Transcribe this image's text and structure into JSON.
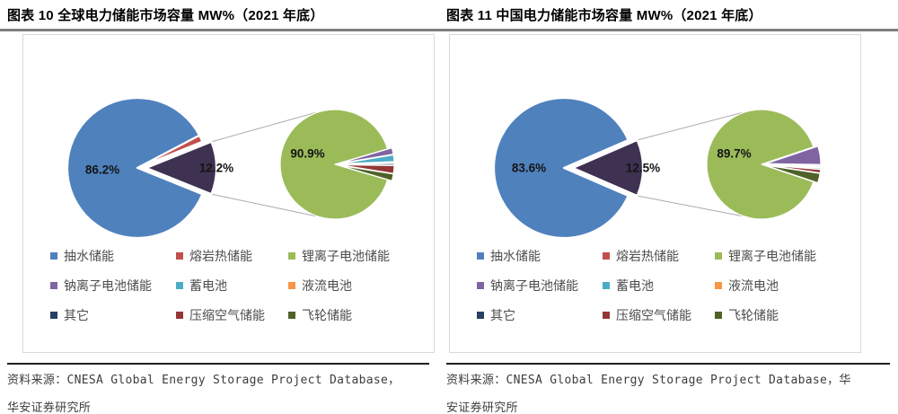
{
  "panels": [
    {
      "title": "图表 10 全球电力储能市场容量 MW%（2021 年底）",
      "source_lines": [
        "资料来源：CNESA Global Energy Storage Project Database，",
        "华安证券研究所"
      ]
    },
    {
      "title": "图表 11 中国电力储能市场容量 MW%（2021 年底）",
      "source_lines": [
        "资料来源：CNESA Global Energy Storage Project Database，华",
        "安证券研究所"
      ]
    }
  ],
  "legend_items": [
    {
      "label": "抽水储能",
      "color": "#4F81BD"
    },
    {
      "label": "熔岩热储能",
      "color": "#C0504D"
    },
    {
      "label": "锂离子电池储能",
      "color": "#9BBB59"
    },
    {
      "label": "钠离子电池储能",
      "color": "#8064A2"
    },
    {
      "label": "蓄电池",
      "color": "#4BACC6"
    },
    {
      "label": "液流电池",
      "color": "#F79646"
    },
    {
      "label": "其它",
      "color": "#254061"
    },
    {
      "label": "压缩空气储能",
      "color": "#943634"
    },
    {
      "label": "飞轮储能",
      "color": "#4F6228"
    }
  ],
  "chart_data": [
    {
      "type": "pie",
      "variant": "pie-of-pie",
      "title": "图表 10 全球电力储能市场容量 MW%（2021 年底）",
      "unit": "MW%",
      "legend_position": "bottom",
      "main_pie": {
        "slices": [
          {
            "label": "抽水储能",
            "value": 86.2,
            "color": "#4F81BD",
            "data_label": "86.2%"
          },
          {
            "label": "熔岩热储能",
            "value": 1.6,
            "color": "#C0504D"
          },
          {
            "label": "其他",
            "value": 12.2,
            "color": "#3F3151",
            "data_label": "12.2%",
            "group": true
          }
        ]
      },
      "secondary_pie": {
        "slices": [
          {
            "label": "锂离子电池储能",
            "value": 90.9,
            "color": "#9BBB59",
            "data_label": "90.9%"
          },
          {
            "label": "钠离子电池储能",
            "value": 1.9,
            "color": "#8064A2"
          },
          {
            "label": "蓄电池",
            "value": 2.0,
            "color": "#4BACC6"
          },
          {
            "label": "液流电池",
            "value": 0.4,
            "color": "#F79646"
          },
          {
            "label": "其它",
            "value": 0.5,
            "color": "#254061"
          },
          {
            "label": "压缩空气储能",
            "value": 2.3,
            "color": "#943634"
          },
          {
            "label": "飞轮储能",
            "value": 2.0,
            "color": "#4F6228"
          }
        ]
      }
    },
    {
      "type": "pie",
      "variant": "pie-of-pie",
      "title": "图表 11 中国电力储能市场容量 MW%（2021 年底）",
      "unit": "MW%",
      "legend_position": "bottom",
      "main_pie": {
        "slices": [
          {
            "label": "抽水储能",
            "value": 83.6,
            "color": "#4F81BD",
            "data_label": "83.6%"
          },
          {
            "label": "其他",
            "value": 12.5,
            "color": "#3F3151",
            "data_label": "12.5%",
            "group": true
          }
        ]
      },
      "secondary_pie": {
        "slices": [
          {
            "label": "锂离子电池储能",
            "value": 89.7,
            "color": "#9BBB59",
            "data_label": "89.7%"
          },
          {
            "label": "钠离子电池储能",
            "value": 5.4,
            "color": "#8064A2"
          },
          {
            "label": "蓄电池",
            "value": 0.4,
            "color": "#4BACC6"
          },
          {
            "label": "液流电池",
            "value": 0.3,
            "color": "#F79646"
          },
          {
            "label": "其它",
            "value": 0.4,
            "color": "#254061"
          },
          {
            "label": "压缩空气储能",
            "value": 1.0,
            "color": "#943634"
          },
          {
            "label": "飞轮储能",
            "value": 2.8,
            "color": "#4F6228"
          }
        ]
      }
    }
  ]
}
